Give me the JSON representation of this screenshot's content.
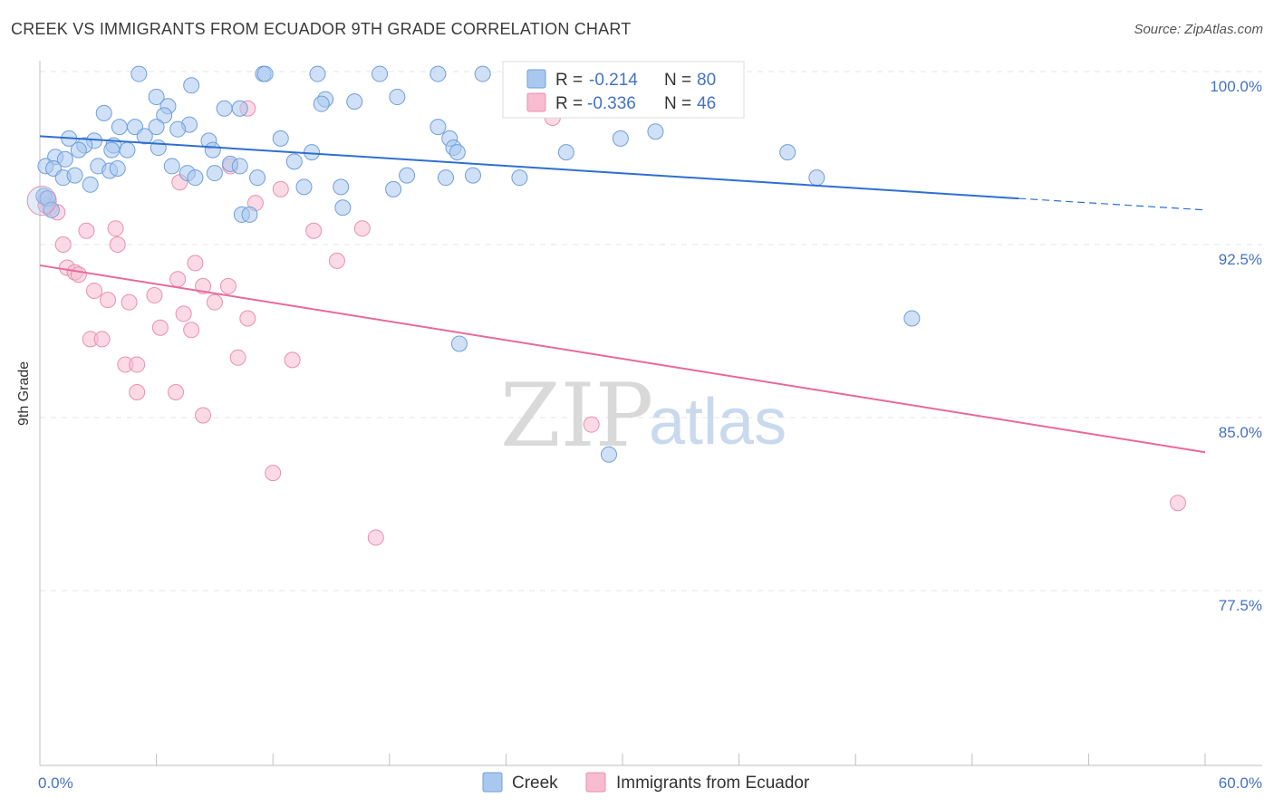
{
  "title": "CREEK VS IMMIGRANTS FROM ECUADOR 9TH GRADE CORRELATION CHART",
  "source": "Source: ZipAtlas.com",
  "watermark": {
    "zip": "ZIP",
    "atlas": "atlas"
  },
  "colors": {
    "creek": "#a9c8f0",
    "creek_stroke": "#6f9fd8",
    "creek_line": "#2f6fd0",
    "ecuador": "#f7bcd0",
    "ecuador_stroke": "#e890b0",
    "ecuador_line": "#e8699a",
    "tick_text": "#4472c4",
    "grid": "#e6e6e6"
  },
  "legend": {
    "r_label": "R =",
    "n_label": "N =",
    "creek": {
      "r": "-0.214",
      "n": "80"
    },
    "ecuador": {
      "r": "-0.336",
      "n": "46"
    }
  },
  "bottom_legend": {
    "creek": "Creek",
    "ecuador": "Immigrants from Ecuador"
  },
  "chart_data": {
    "type": "scatter",
    "title": "CREEK VS IMMIGRANTS FROM ECUADOR 9TH GRADE CORRELATION CHART",
    "xlabel": "",
    "ylabel": "9th Grade",
    "xlim": [
      0,
      60
    ],
    "ylim": [
      70,
      100.5
    ],
    "x_tick_labels": [
      "0.0%",
      "60.0%"
    ],
    "y_ticks": [
      77.5,
      85.0,
      92.5,
      100.0
    ],
    "y_tick_labels": [
      "77.5%",
      "85.0%",
      "92.5%",
      "100.0%"
    ],
    "grid": true,
    "legend_position": "top-center",
    "series": [
      {
        "name": "Creek",
        "trend": {
          "x": [
            0.0,
            50.4
          ],
          "y": [
            97.2,
            94.5
          ],
          "dashed_to": [
            60.0,
            94.0
          ]
        },
        "points": [
          [
            5.1,
            99.9
          ],
          [
            11.5,
            99.9
          ],
          [
            11.6,
            99.9
          ],
          [
            14.3,
            99.9
          ],
          [
            17.5,
            99.9
          ],
          [
            20.5,
            99.9
          ],
          [
            22.8,
            99.9
          ],
          [
            7.8,
            99.4
          ],
          [
            6.0,
            98.9
          ],
          [
            6.6,
            98.5
          ],
          [
            10.3,
            98.4
          ],
          [
            14.7,
            98.8
          ],
          [
            16.2,
            98.7
          ],
          [
            14.5,
            98.6
          ],
          [
            18.4,
            98.9
          ],
          [
            3.3,
            98.2
          ],
          [
            6.4,
            98.1
          ],
          [
            9.5,
            98.4
          ],
          [
            25.7,
            99.1
          ],
          [
            4.1,
            97.6
          ],
          [
            4.9,
            97.6
          ],
          [
            5.4,
            97.2
          ],
          [
            6.0,
            97.6
          ],
          [
            7.7,
            97.7
          ],
          [
            7.1,
            97.5
          ],
          [
            20.5,
            97.6
          ],
          [
            21.1,
            97.1
          ],
          [
            1.5,
            97.1
          ],
          [
            2.8,
            97.0
          ],
          [
            2.3,
            96.8
          ],
          [
            3.8,
            96.8
          ],
          [
            4.5,
            96.6
          ],
          [
            6.1,
            96.7
          ],
          [
            8.7,
            97.0
          ],
          [
            12.4,
            97.1
          ],
          [
            29.9,
            97.1
          ],
          [
            31.7,
            97.4
          ],
          [
            21.3,
            96.7
          ],
          [
            27.1,
            96.5
          ],
          [
            38.5,
            96.5
          ],
          [
            0.8,
            96.3
          ],
          [
            1.3,
            96.2
          ],
          [
            2.0,
            96.6
          ],
          [
            3.7,
            96.6
          ],
          [
            8.9,
            96.6
          ],
          [
            13.1,
            96.1
          ],
          [
            14.0,
            96.5
          ],
          [
            21.5,
            96.5
          ],
          [
            0.3,
            95.9
          ],
          [
            0.7,
            95.8
          ],
          [
            3.0,
            95.9
          ],
          [
            3.6,
            95.7
          ],
          [
            4.0,
            95.8
          ],
          [
            6.8,
            95.9
          ],
          [
            7.6,
            95.6
          ],
          [
            9.0,
            95.6
          ],
          [
            9.8,
            96.0
          ],
          [
            10.3,
            95.9
          ],
          [
            20.9,
            95.4
          ],
          [
            22.3,
            95.5
          ],
          [
            1.2,
            95.4
          ],
          [
            1.8,
            95.5
          ],
          [
            2.6,
            95.1
          ],
          [
            8.0,
            95.4
          ],
          [
            11.2,
            95.4
          ],
          [
            18.9,
            95.5
          ],
          [
            24.7,
            95.4
          ],
          [
            40.0,
            95.4
          ],
          [
            13.6,
            95.0
          ],
          [
            15.5,
            95.0
          ],
          [
            18.2,
            94.9
          ],
          [
            15.6,
            94.1
          ],
          [
            10.4,
            93.8
          ],
          [
            10.8,
            93.8
          ],
          [
            0.2,
            94.6
          ],
          [
            0.4,
            94.5
          ],
          [
            0.6,
            94.0
          ],
          [
            44.9,
            89.3
          ],
          [
            21.6,
            88.2
          ],
          [
            29.3,
            83.4
          ]
        ]
      },
      {
        "name": "Immigrants from Ecuador",
        "trend": {
          "x": [
            0.0,
            60.0
          ],
          "y": [
            91.6,
            83.5
          ]
        },
        "points": [
          [
            10.7,
            98.4
          ],
          [
            26.4,
            98.0
          ],
          [
            7.2,
            95.2
          ],
          [
            9.8,
            95.9
          ],
          [
            12.4,
            94.9
          ],
          [
            11.1,
            94.3
          ],
          [
            0.3,
            94.5
          ],
          [
            0.5,
            94.1
          ],
          [
            0.9,
            93.9
          ],
          [
            2.4,
            93.1
          ],
          [
            3.9,
            93.2
          ],
          [
            14.1,
            93.1
          ],
          [
            16.6,
            93.2
          ],
          [
            1.2,
            92.5
          ],
          [
            4.0,
            92.5
          ],
          [
            8.0,
            91.7
          ],
          [
            15.3,
            91.8
          ],
          [
            1.4,
            91.5
          ],
          [
            1.8,
            91.3
          ],
          [
            2.0,
            91.2
          ],
          [
            7.1,
            91.0
          ],
          [
            8.4,
            90.7
          ],
          [
            9.7,
            90.7
          ],
          [
            2.8,
            90.5
          ],
          [
            5.9,
            90.3
          ],
          [
            3.5,
            90.1
          ],
          [
            4.6,
            90.0
          ],
          [
            9.0,
            90.0
          ],
          [
            7.4,
            89.5
          ],
          [
            10.7,
            89.3
          ],
          [
            6.2,
            88.9
          ],
          [
            7.8,
            88.8
          ],
          [
            2.6,
            88.4
          ],
          [
            3.2,
            88.4
          ],
          [
            10.2,
            87.6
          ],
          [
            13.0,
            87.5
          ],
          [
            4.4,
            87.3
          ],
          [
            5.0,
            87.3
          ],
          [
            5.0,
            86.1
          ],
          [
            7.0,
            86.1
          ],
          [
            8.4,
            85.1
          ],
          [
            28.4,
            84.7
          ],
          [
            12.0,
            82.6
          ],
          [
            58.6,
            81.3
          ],
          [
            17.3,
            79.8
          ],
          [
            0.3,
            94.2
          ]
        ]
      }
    ]
  }
}
